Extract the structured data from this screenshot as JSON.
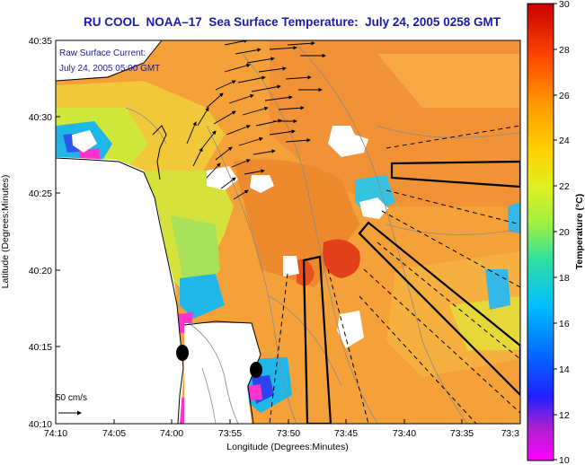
{
  "title": "RU COOL  NOAA–17  Sea Surface Temperature:  July 24, 2005 0258 GMT",
  "inset": {
    "line1": "Raw Surface Current:",
    "line2": "July 24, 2005 05:00 GMT"
  },
  "scale_label": "50 cm/s",
  "x_axis": {
    "label": "Longitude (Degrees:Minutes)",
    "ticks": [
      "74:10",
      "74:05",
      "74:00",
      "73:55",
      "73:50",
      "73:45",
      "73:40",
      "73:35",
      "73:3"
    ]
  },
  "y_axis": {
    "label": "Latitude (Degrees:Minutes)",
    "ticks": [
      "40:35",
      "40:30",
      "40:25",
      "40:20",
      "40:15",
      "40:10"
    ]
  },
  "colorbar": {
    "label": "Temperature (°C)",
    "ticks": [
      "30",
      "28",
      "26",
      "24",
      "22",
      "20",
      "18",
      "16",
      "14",
      "12",
      "10"
    ],
    "range": [
      10,
      30
    ]
  },
  "colors": {
    "title": "#1a1aa6",
    "land": "#ffffff",
    "sst_warm": "#f4a13a",
    "sst_hot": "#e2401c",
    "sst_mid": "#cfe83a",
    "sst_cool": "#1fb6e8"
  }
}
